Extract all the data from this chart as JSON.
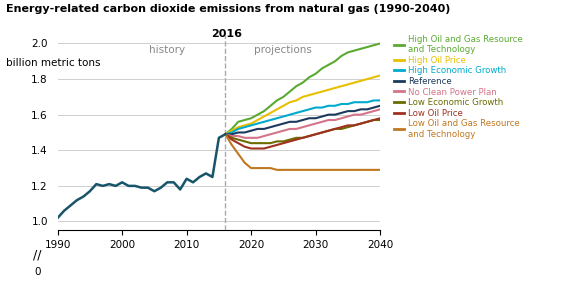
{
  "title": "Energy-related carbon dioxide emissions from natural gas (1990-2040)",
  "ylabel": "billion metric tons",
  "ylim": [
    0.95,
    2.05
  ],
  "yticks": [
    1.0,
    1.2,
    1.4,
    1.6,
    1.8,
    2.0
  ],
  "xlim": [
    1990,
    2040
  ],
  "xticks": [
    1990,
    2000,
    2010,
    2020,
    2030,
    2040
  ],
  "split_year": 2016,
  "history": {
    "years": [
      1990,
      1991,
      1992,
      1993,
      1994,
      1995,
      1996,
      1997,
      1998,
      1999,
      2000,
      2001,
      2002,
      2003,
      2004,
      2005,
      2006,
      2007,
      2008,
      2009,
      2010,
      2011,
      2012,
      2013,
      2014,
      2015,
      2016
    ],
    "values": [
      1.02,
      1.06,
      1.09,
      1.12,
      1.14,
      1.17,
      1.21,
      1.2,
      1.21,
      1.2,
      1.22,
      1.2,
      1.2,
      1.19,
      1.19,
      1.17,
      1.19,
      1.22,
      1.22,
      1.18,
      1.24,
      1.22,
      1.25,
      1.27,
      1.25,
      1.47,
      1.49
    ],
    "color": "#18546a"
  },
  "projections": {
    "years": [
      2016,
      2017,
      2018,
      2019,
      2020,
      2021,
      2022,
      2023,
      2024,
      2025,
      2026,
      2027,
      2028,
      2029,
      2030,
      2031,
      2032,
      2033,
      2034,
      2035,
      2036,
      2037,
      2038,
      2039,
      2040
    ],
    "series": {
      "high_og": {
        "label": "High Oil and Gas Resource\nand Technology",
        "color": "#5aaa32",
        "values": [
          1.49,
          1.52,
          1.56,
          1.57,
          1.58,
          1.6,
          1.62,
          1.65,
          1.68,
          1.7,
          1.73,
          1.76,
          1.78,
          1.81,
          1.83,
          1.86,
          1.88,
          1.9,
          1.93,
          1.95,
          1.96,
          1.97,
          1.98,
          1.99,
          2.0
        ]
      },
      "high_oil": {
        "label": "High Oil Price",
        "color": "#e8c000",
        "values": [
          1.49,
          1.51,
          1.53,
          1.54,
          1.55,
          1.57,
          1.59,
          1.61,
          1.63,
          1.65,
          1.67,
          1.68,
          1.7,
          1.71,
          1.72,
          1.73,
          1.74,
          1.75,
          1.76,
          1.77,
          1.78,
          1.79,
          1.8,
          1.81,
          1.82
        ]
      },
      "high_econ": {
        "label": "High Economic Growth",
        "color": "#00aacc",
        "values": [
          1.49,
          1.5,
          1.52,
          1.53,
          1.54,
          1.55,
          1.56,
          1.57,
          1.58,
          1.59,
          1.6,
          1.61,
          1.62,
          1.63,
          1.64,
          1.64,
          1.65,
          1.65,
          1.66,
          1.66,
          1.67,
          1.67,
          1.67,
          1.68,
          1.68
        ]
      },
      "reference": {
        "label": "Reference",
        "color": "#1c3a5e",
        "values": [
          1.49,
          1.49,
          1.5,
          1.5,
          1.51,
          1.52,
          1.52,
          1.53,
          1.54,
          1.55,
          1.56,
          1.56,
          1.57,
          1.58,
          1.58,
          1.59,
          1.6,
          1.6,
          1.61,
          1.62,
          1.62,
          1.63,
          1.63,
          1.64,
          1.65
        ]
      },
      "no_cpp": {
        "label": "No Clean Power Plan",
        "color": "#d4748a",
        "values": [
          1.49,
          1.48,
          1.48,
          1.47,
          1.47,
          1.47,
          1.48,
          1.49,
          1.5,
          1.51,
          1.52,
          1.52,
          1.53,
          1.54,
          1.55,
          1.56,
          1.57,
          1.57,
          1.58,
          1.59,
          1.6,
          1.6,
          1.61,
          1.62,
          1.63
        ]
      },
      "low_econ": {
        "label": "Low Economic Growth",
        "color": "#6b6b00",
        "values": [
          1.49,
          1.47,
          1.46,
          1.45,
          1.44,
          1.44,
          1.44,
          1.44,
          1.45,
          1.45,
          1.46,
          1.47,
          1.47,
          1.48,
          1.49,
          1.5,
          1.51,
          1.52,
          1.52,
          1.53,
          1.54,
          1.55,
          1.56,
          1.57,
          1.57
        ]
      },
      "low_oil": {
        "label": "Low Oil Price",
        "color": "#a03020",
        "values": [
          1.49,
          1.46,
          1.44,
          1.42,
          1.41,
          1.41,
          1.41,
          1.42,
          1.43,
          1.44,
          1.45,
          1.46,
          1.47,
          1.48,
          1.49,
          1.5,
          1.51,
          1.52,
          1.53,
          1.54,
          1.54,
          1.55,
          1.56,
          1.57,
          1.58
        ]
      },
      "low_og": {
        "label": "Low Oil and Gas Resource\nand Technology",
        "color": "#c07820",
        "values": [
          1.49,
          1.43,
          1.38,
          1.33,
          1.3,
          1.3,
          1.3,
          1.3,
          1.29,
          1.29,
          1.29,
          1.29,
          1.29,
          1.29,
          1.29,
          1.29,
          1.29,
          1.29,
          1.29,
          1.29,
          1.29,
          1.29,
          1.29,
          1.29,
          1.29
        ]
      }
    }
  },
  "legend_order": [
    "high_og",
    "high_oil",
    "high_econ",
    "reference",
    "no_cpp",
    "low_econ",
    "low_oil",
    "low_og"
  ],
  "history_color": "#18546a",
  "background_color": "#ffffff",
  "grid_color": "#c8c8c8"
}
